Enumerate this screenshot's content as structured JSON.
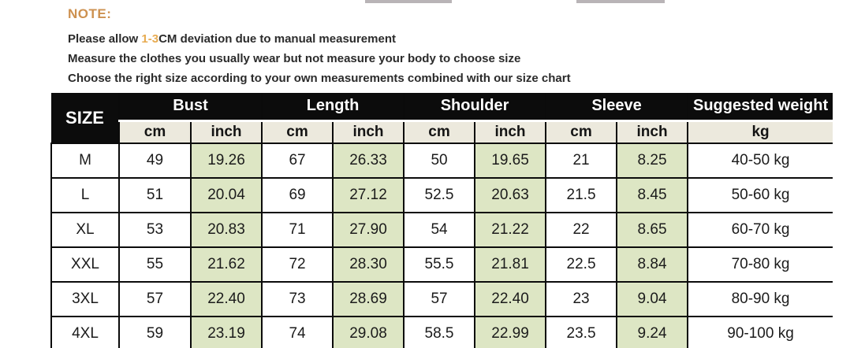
{
  "note": {
    "title": "NOTE:",
    "line1_prefix": "Please allow ",
    "line1_highlight": "1-3",
    "line1_suffix": "CM deviation due to manual measurement",
    "line2": "Measure the clothes you usually wear but not measure your body to choose size",
    "line3": "Choose the right size according to your own measurements combined with our size chart"
  },
  "table": {
    "size_label": "SIZE",
    "groups": [
      "Bust",
      "Length",
      "Shoulder",
      "Sleeve"
    ],
    "weight_label": "Suggested weight",
    "subheaders": [
      "cm",
      "inch",
      "cm",
      "inch",
      "cm",
      "inch",
      "cm",
      "inch"
    ],
    "weight_unit": "kg",
    "rows": [
      {
        "size": "M",
        "values": [
          "49",
          "19.26",
          "67",
          "26.33",
          "50",
          "19.65",
          "21",
          "8.25"
        ],
        "weight": "40-50 kg"
      },
      {
        "size": "L",
        "values": [
          "51",
          "20.04",
          "69",
          "27.12",
          "52.5",
          "20.63",
          "21.5",
          "8.45"
        ],
        "weight": "50-60 kg"
      },
      {
        "size": "XL",
        "values": [
          "53",
          "20.83",
          "71",
          "27.90",
          "54",
          "21.22",
          "22",
          "8.65"
        ],
        "weight": "60-70 kg"
      },
      {
        "size": "XXL",
        "values": [
          "55",
          "21.62",
          "72",
          "28.30",
          "55.5",
          "21.81",
          "22.5",
          "8.84"
        ],
        "weight": "70-80 kg"
      },
      {
        "size": "3XL",
        "values": [
          "57",
          "22.40",
          "73",
          "28.69",
          "57",
          "22.40",
          "23",
          "9.04"
        ],
        "weight": "80-90 kg"
      },
      {
        "size": "4XL",
        "values": [
          "59",
          "23.19",
          "74",
          "29.08",
          "58.5",
          "22.99",
          "23.5",
          "9.24"
        ],
        "weight": "90-100 kg"
      }
    ]
  },
  "colors": {
    "note_title_orange": "#cd9150",
    "highlight_orange": "#e7ab51",
    "header_bg": "#0c0c0c",
    "header_text": "#ffffff",
    "subheader_bg": "#ece9dd",
    "inch_cell_green": "#dde6c4",
    "grid_line": "#0b0b0b",
    "body_text": "#1b1b1b"
  },
  "chart_data": {
    "type": "table",
    "title": "Size chart",
    "columns": [
      "SIZE",
      "Bust cm",
      "Bust inch",
      "Length cm",
      "Length inch",
      "Shoulder cm",
      "Shoulder inch",
      "Sleeve cm",
      "Sleeve inch",
      "Suggested weight kg"
    ],
    "rows": [
      [
        "M",
        49,
        19.26,
        67,
        26.33,
        50,
        19.65,
        21,
        8.25,
        "40-50 kg"
      ],
      [
        "L",
        51,
        20.04,
        69,
        27.12,
        52.5,
        20.63,
        21.5,
        8.45,
        "50-60 kg"
      ],
      [
        "XL",
        53,
        20.83,
        71,
        27.9,
        54,
        21.22,
        22,
        8.65,
        "60-70 kg"
      ],
      [
        "XXL",
        55,
        21.62,
        72,
        28.3,
        55.5,
        21.81,
        22.5,
        8.84,
        "70-80 kg"
      ],
      [
        "3XL",
        57,
        22.4,
        73,
        28.69,
        57,
        22.4,
        23,
        9.04,
        "80-90 kg"
      ],
      [
        "4XL",
        59,
        23.19,
        74,
        29.08,
        58.5,
        22.99,
        23.5,
        9.24,
        "90-100 kg"
      ]
    ]
  }
}
